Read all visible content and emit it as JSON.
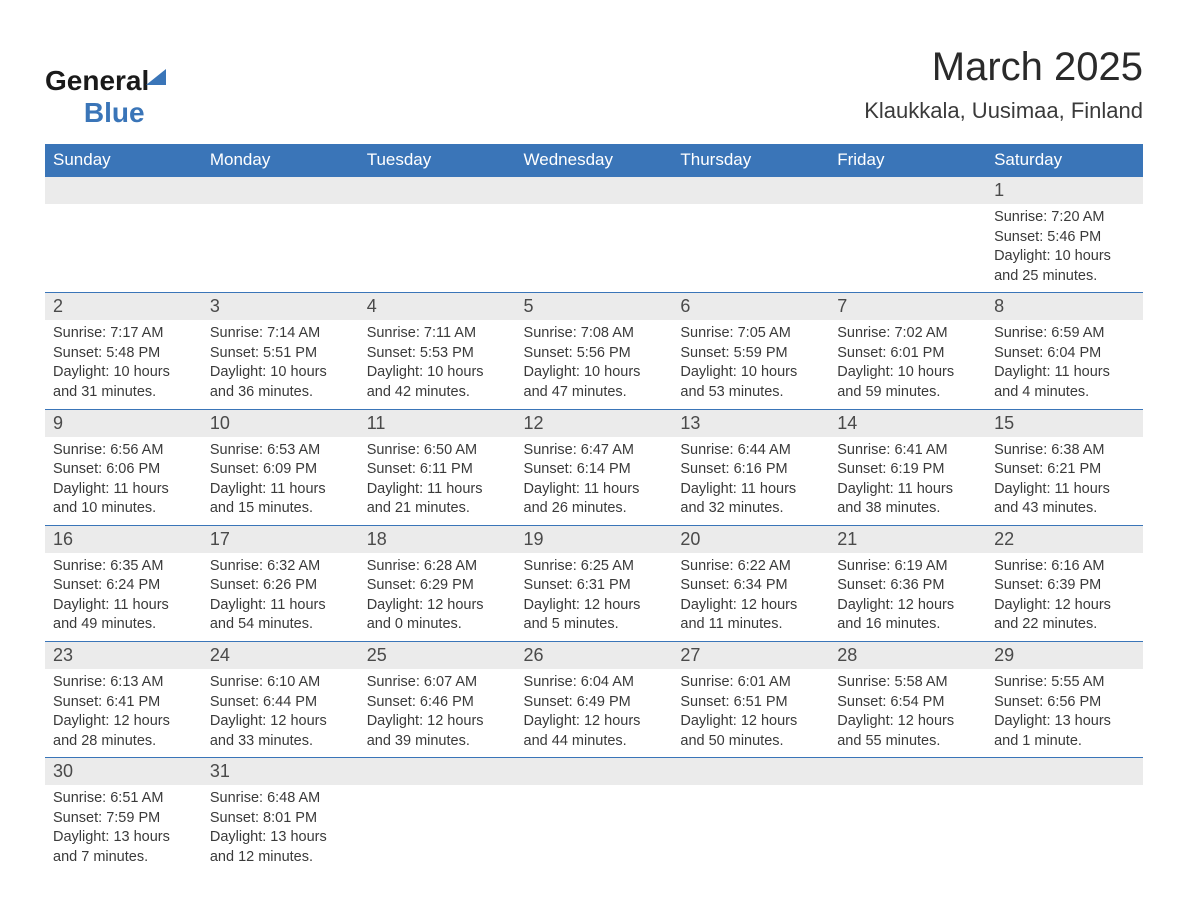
{
  "logo": {
    "text_general": "General",
    "text_blue": "Blue"
  },
  "title": "March 2025",
  "subtitle": "Klaukkala, Uusimaa, Finland",
  "colors": {
    "header_bg": "#3a75b8",
    "header_text": "#ffffff",
    "row_stripe": "#ebebeb",
    "border": "#3a75b8",
    "text": "#3a3a3a"
  },
  "day_names": [
    "Sunday",
    "Monday",
    "Tuesday",
    "Wednesday",
    "Thursday",
    "Friday",
    "Saturday"
  ],
  "weeks": [
    [
      null,
      null,
      null,
      null,
      null,
      null,
      {
        "n": "1",
        "sr": "Sunrise: 7:20 AM",
        "ss": "Sunset: 5:46 PM",
        "dl": "Daylight: 10 hours and 25 minutes."
      }
    ],
    [
      {
        "n": "2",
        "sr": "Sunrise: 7:17 AM",
        "ss": "Sunset: 5:48 PM",
        "dl": "Daylight: 10 hours and 31 minutes."
      },
      {
        "n": "3",
        "sr": "Sunrise: 7:14 AM",
        "ss": "Sunset: 5:51 PM",
        "dl": "Daylight: 10 hours and 36 minutes."
      },
      {
        "n": "4",
        "sr": "Sunrise: 7:11 AM",
        "ss": "Sunset: 5:53 PM",
        "dl": "Daylight: 10 hours and 42 minutes."
      },
      {
        "n": "5",
        "sr": "Sunrise: 7:08 AM",
        "ss": "Sunset: 5:56 PM",
        "dl": "Daylight: 10 hours and 47 minutes."
      },
      {
        "n": "6",
        "sr": "Sunrise: 7:05 AM",
        "ss": "Sunset: 5:59 PM",
        "dl": "Daylight: 10 hours and 53 minutes."
      },
      {
        "n": "7",
        "sr": "Sunrise: 7:02 AM",
        "ss": "Sunset: 6:01 PM",
        "dl": "Daylight: 10 hours and 59 minutes."
      },
      {
        "n": "8",
        "sr": "Sunrise: 6:59 AM",
        "ss": "Sunset: 6:04 PM",
        "dl": "Daylight: 11 hours and 4 minutes."
      }
    ],
    [
      {
        "n": "9",
        "sr": "Sunrise: 6:56 AM",
        "ss": "Sunset: 6:06 PM",
        "dl": "Daylight: 11 hours and 10 minutes."
      },
      {
        "n": "10",
        "sr": "Sunrise: 6:53 AM",
        "ss": "Sunset: 6:09 PM",
        "dl": "Daylight: 11 hours and 15 minutes."
      },
      {
        "n": "11",
        "sr": "Sunrise: 6:50 AM",
        "ss": "Sunset: 6:11 PM",
        "dl": "Daylight: 11 hours and 21 minutes."
      },
      {
        "n": "12",
        "sr": "Sunrise: 6:47 AM",
        "ss": "Sunset: 6:14 PM",
        "dl": "Daylight: 11 hours and 26 minutes."
      },
      {
        "n": "13",
        "sr": "Sunrise: 6:44 AM",
        "ss": "Sunset: 6:16 PM",
        "dl": "Daylight: 11 hours and 32 minutes."
      },
      {
        "n": "14",
        "sr": "Sunrise: 6:41 AM",
        "ss": "Sunset: 6:19 PM",
        "dl": "Daylight: 11 hours and 38 minutes."
      },
      {
        "n": "15",
        "sr": "Sunrise: 6:38 AM",
        "ss": "Sunset: 6:21 PM",
        "dl": "Daylight: 11 hours and 43 minutes."
      }
    ],
    [
      {
        "n": "16",
        "sr": "Sunrise: 6:35 AM",
        "ss": "Sunset: 6:24 PM",
        "dl": "Daylight: 11 hours and 49 minutes."
      },
      {
        "n": "17",
        "sr": "Sunrise: 6:32 AM",
        "ss": "Sunset: 6:26 PM",
        "dl": "Daylight: 11 hours and 54 minutes."
      },
      {
        "n": "18",
        "sr": "Sunrise: 6:28 AM",
        "ss": "Sunset: 6:29 PM",
        "dl": "Daylight: 12 hours and 0 minutes."
      },
      {
        "n": "19",
        "sr": "Sunrise: 6:25 AM",
        "ss": "Sunset: 6:31 PM",
        "dl": "Daylight: 12 hours and 5 minutes."
      },
      {
        "n": "20",
        "sr": "Sunrise: 6:22 AM",
        "ss": "Sunset: 6:34 PM",
        "dl": "Daylight: 12 hours and 11 minutes."
      },
      {
        "n": "21",
        "sr": "Sunrise: 6:19 AM",
        "ss": "Sunset: 6:36 PM",
        "dl": "Daylight: 12 hours and 16 minutes."
      },
      {
        "n": "22",
        "sr": "Sunrise: 6:16 AM",
        "ss": "Sunset: 6:39 PM",
        "dl": "Daylight: 12 hours and 22 minutes."
      }
    ],
    [
      {
        "n": "23",
        "sr": "Sunrise: 6:13 AM",
        "ss": "Sunset: 6:41 PM",
        "dl": "Daylight: 12 hours and 28 minutes."
      },
      {
        "n": "24",
        "sr": "Sunrise: 6:10 AM",
        "ss": "Sunset: 6:44 PM",
        "dl": "Daylight: 12 hours and 33 minutes."
      },
      {
        "n": "25",
        "sr": "Sunrise: 6:07 AM",
        "ss": "Sunset: 6:46 PM",
        "dl": "Daylight: 12 hours and 39 minutes."
      },
      {
        "n": "26",
        "sr": "Sunrise: 6:04 AM",
        "ss": "Sunset: 6:49 PM",
        "dl": "Daylight: 12 hours and 44 minutes."
      },
      {
        "n": "27",
        "sr": "Sunrise: 6:01 AM",
        "ss": "Sunset: 6:51 PM",
        "dl": "Daylight: 12 hours and 50 minutes."
      },
      {
        "n": "28",
        "sr": "Sunrise: 5:58 AM",
        "ss": "Sunset: 6:54 PM",
        "dl": "Daylight: 12 hours and 55 minutes."
      },
      {
        "n": "29",
        "sr": "Sunrise: 5:55 AM",
        "ss": "Sunset: 6:56 PM",
        "dl": "Daylight: 13 hours and 1 minute."
      }
    ],
    [
      {
        "n": "30",
        "sr": "Sunrise: 6:51 AM",
        "ss": "Sunset: 7:59 PM",
        "dl": "Daylight: 13 hours and 7 minutes."
      },
      {
        "n": "31",
        "sr": "Sunrise: 6:48 AM",
        "ss": "Sunset: 8:01 PM",
        "dl": "Daylight: 13 hours and 12 minutes."
      },
      null,
      null,
      null,
      null,
      null
    ]
  ]
}
